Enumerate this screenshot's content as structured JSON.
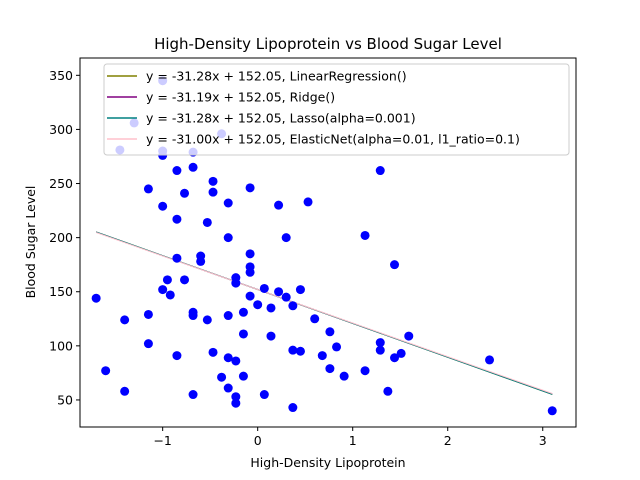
{
  "chart_data": {
    "type": "scatter",
    "title": "High-Density Lipoprotein vs Blood Sugar Level",
    "xlabel": "High-Density Lipoprotein",
    "ylabel": "Blood Sugar Level",
    "xlim": [
      -1.87,
      3.35
    ],
    "ylim": [
      25,
      366
    ],
    "xticks": [
      -1,
      0,
      1,
      2,
      3
    ],
    "yticks": [
      50,
      100,
      150,
      200,
      250,
      300,
      350
    ],
    "grid": false,
    "legend_position": "top-right",
    "points": {
      "color": "#0000ff",
      "data": [
        [
          -1.7,
          144
        ],
        [
          -1.6,
          77
        ],
        [
          -1.4,
          124
        ],
        [
          -1.4,
          58
        ],
        [
          -1.45,
          281
        ],
        [
          -1.3,
          306
        ],
        [
          -1.15,
          129
        ],
        [
          -1.15,
          102
        ],
        [
          -1.15,
          245
        ],
        [
          -1.0,
          345
        ],
        [
          -1.0,
          280
        ],
        [
          -1.0,
          276
        ],
        [
          -1.0,
          229
        ],
        [
          -1.0,
          152
        ],
        [
          -0.95,
          161
        ],
        [
          -0.92,
          147
        ],
        [
          -0.85,
          262
        ],
        [
          -0.85,
          217
        ],
        [
          -0.85,
          181
        ],
        [
          -0.85,
          91
        ],
        [
          -0.77,
          241
        ],
        [
          -0.77,
          161
        ],
        [
          -0.68,
          265
        ],
        [
          -0.68,
          279
        ],
        [
          -0.68,
          131
        ],
        [
          -0.68,
          128
        ],
        [
          -0.68,
          55
        ],
        [
          -0.6,
          183
        ],
        [
          -0.6,
          178
        ],
        [
          -0.53,
          214
        ],
        [
          -0.53,
          124
        ],
        [
          -0.47,
          252
        ],
        [
          -0.47,
          242
        ],
        [
          -0.47,
          94
        ],
        [
          -0.38,
          296
        ],
        [
          -0.38,
          71
        ],
        [
          -0.31,
          232
        ],
        [
          -0.31,
          200
        ],
        [
          -0.31,
          128
        ],
        [
          -0.31,
          89
        ],
        [
          -0.31,
          61
        ],
        [
          -0.23,
          86
        ],
        [
          -0.23,
          163
        ],
        [
          -0.23,
          158
        ],
        [
          -0.23,
          53
        ],
        [
          -0.23,
          47
        ],
        [
          -0.15,
          131
        ],
        [
          -0.15,
          111
        ],
        [
          -0.15,
          72
        ],
        [
          -0.08,
          246
        ],
        [
          -0.08,
          185
        ],
        [
          -0.08,
          173
        ],
        [
          -0.08,
          168
        ],
        [
          -0.08,
          146
        ],
        [
          0.0,
          138
        ],
        [
          0.07,
          153
        ],
        [
          0.07,
          55
        ],
        [
          0.14,
          135
        ],
        [
          0.14,
          109
        ],
        [
          0.22,
          230
        ],
        [
          0.22,
          150
        ],
        [
          0.3,
          200
        ],
        [
          0.3,
          145
        ],
        [
          0.37,
          137
        ],
        [
          0.37,
          96
        ],
        [
          0.37,
          43
        ],
        [
          0.45,
          152
        ],
        [
          0.45,
          95
        ],
        [
          0.53,
          233
        ],
        [
          0.6,
          125
        ],
        [
          0.68,
          91
        ],
        [
          0.76,
          113
        ],
        [
          0.76,
          79
        ],
        [
          0.83,
          99
        ],
        [
          0.91,
          72
        ],
        [
          1.13,
          202
        ],
        [
          1.13,
          77
        ],
        [
          1.29,
          262
        ],
        [
          1.29,
          103
        ],
        [
          1.29,
          96
        ],
        [
          1.37,
          58
        ],
        [
          1.44,
          175
        ],
        [
          1.44,
          89
        ],
        [
          1.51,
          93
        ],
        [
          1.59,
          109
        ],
        [
          2.44,
          87
        ],
        [
          3.1,
          40
        ]
      ]
    },
    "series": [
      {
        "name": "y = -31.28x + 152.05, LinearRegression()",
        "color": "#808000",
        "slope": -31.28,
        "intercept": 152.05
      },
      {
        "name": "y = -31.19x + 152.05, Ridge()",
        "color": "#800080",
        "slope": -31.19,
        "intercept": 152.05
      },
      {
        "name": "y = -31.28x + 152.05, Lasso(alpha=0.001)",
        "color": "#008080",
        "slope": -31.28,
        "intercept": 152.05
      },
      {
        "name": "y = -31.00x + 152.05, ElasticNet(alpha=0.01, l1_ratio=0.1)",
        "color": "#ffc0cb",
        "slope": -31.0,
        "intercept": 152.05
      }
    ],
    "line_x_range": [
      -1.7,
      3.1
    ]
  }
}
